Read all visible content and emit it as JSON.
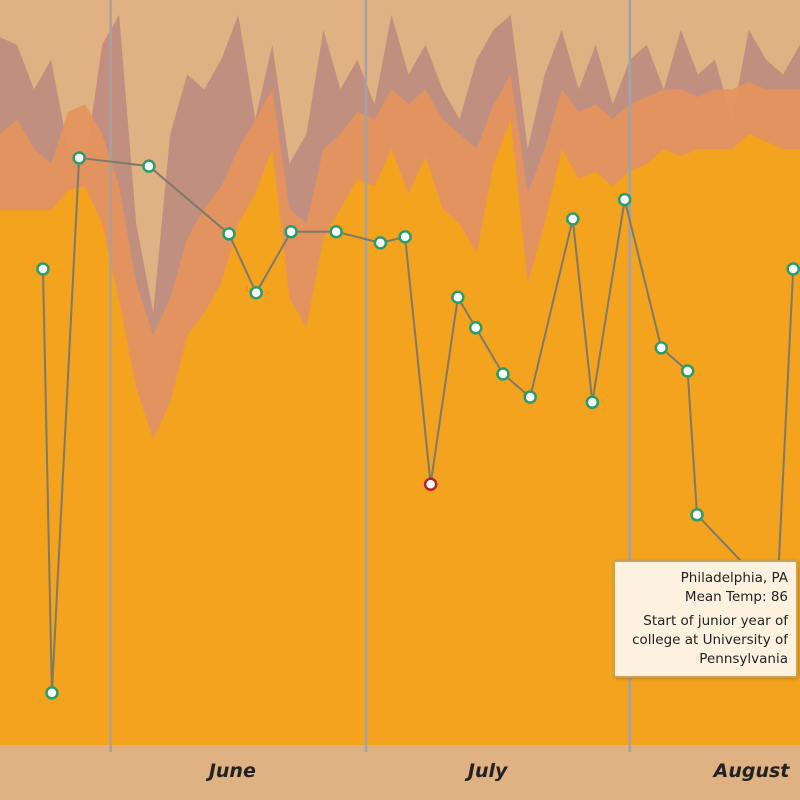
{
  "chart_data": {
    "type": "line",
    "xlim": [
      0,
      94
    ],
    "ylim": [
      0,
      100
    ],
    "xticks": [
      {
        "value": 13,
        "label": "June"
      },
      {
        "value": 43,
        "label": "July"
      },
      {
        "value": 74,
        "label": "August"
      }
    ],
    "background": "#dfb183",
    "areas": [
      {
        "color": "#bc8a80",
        "x": [
          0,
          2,
          4,
          6,
          8,
          10,
          12,
          14,
          16,
          18,
          20,
          22,
          24,
          26,
          28,
          30,
          32,
          34,
          36,
          38,
          40,
          42,
          44,
          46,
          48,
          50,
          52,
          54,
          56,
          58,
          60,
          62,
          64,
          66,
          68,
          70,
          72,
          74,
          76,
          78,
          80,
          82,
          84,
          86,
          88,
          90,
          92,
          94
        ],
        "values": [
          95,
          94,
          88,
          92,
          80,
          78,
          94,
          98,
          70,
          58,
          82,
          90,
          88,
          92,
          98,
          84,
          94,
          78,
          82,
          96,
          88,
          92,
          86,
          98,
          90,
          94,
          88,
          84,
          92,
          96,
          98,
          80,
          90,
          96,
          88,
          94,
          86,
          92,
          94,
          88,
          96,
          90,
          92,
          84,
          96,
          92,
          90,
          94
        ]
      },
      {
        "color": "#e6935c",
        "x": [
          0,
          2,
          4,
          6,
          8,
          10,
          12,
          14,
          16,
          18,
          20,
          22,
          24,
          26,
          28,
          30,
          32,
          34,
          36,
          38,
          40,
          42,
          44,
          46,
          48,
          50,
          52,
          54,
          56,
          58,
          60,
          62,
          64,
          66,
          68,
          70,
          72,
          74,
          76,
          78,
          80,
          82,
          84,
          86,
          88,
          90,
          92,
          94
        ],
        "values": [
          82,
          84,
          80,
          78,
          85,
          86,
          82,
          75,
          62,
          55,
          60,
          68,
          72,
          75,
          80,
          84,
          88,
          72,
          70,
          80,
          82,
          85,
          84,
          88,
          86,
          88,
          84,
          82,
          80,
          86,
          90,
          74,
          80,
          88,
          85,
          86,
          84,
          86,
          87,
          88,
          88,
          87,
          88,
          88,
          89,
          88,
          88,
          88
        ]
      },
      {
        "color": "#f5a516",
        "x": [
          0,
          2,
          4,
          6,
          8,
          10,
          12,
          14,
          16,
          18,
          20,
          22,
          24,
          26,
          28,
          30,
          32,
          34,
          36,
          38,
          40,
          42,
          44,
          46,
          48,
          50,
          52,
          54,
          56,
          58,
          60,
          62,
          64,
          66,
          68,
          70,
          72,
          74,
          76,
          78,
          80,
          82,
          84,
          86,
          88,
          90,
          92,
          94
        ],
        "values": [
          71.8,
          71.8,
          71.8,
          71.8,
          74.5,
          75,
          70,
          59.7,
          48,
          41,
          46,
          55,
          58,
          62,
          70,
          74,
          80,
          60,
          56,
          68,
          72,
          76,
          75,
          80,
          74,
          79,
          72,
          70,
          66,
          78,
          84,
          62,
          70,
          80,
          76,
          77,
          75,
          77,
          78,
          80,
          79,
          80,
          80,
          80,
          82,
          81,
          80,
          80
        ]
      }
    ],
    "line": {
      "color": "#7d7a68",
      "marker_color": "#2a9c6c",
      "highlight_color": "#b3242c",
      "highlight_point": 10,
      "x": [
        5.05,
        6.1,
        9.3,
        17.5,
        26.9,
        30.1,
        34.2,
        39.5,
        44.7,
        47.6,
        50.6,
        53.8,
        55.9,
        59.1,
        62.3,
        67.3,
        69.6,
        73.4,
        77.7,
        80.8,
        81.9,
        91.3,
        93.2
      ],
      "values": [
        63.9,
        7.0,
        78.8,
        77.7,
        68.6,
        60.7,
        68.9,
        68.9,
        67.4,
        68.2,
        35.0,
        60.1,
        56.0,
        49.8,
        46.7,
        70.6,
        46.0,
        73.2,
        53.3,
        50.2,
        30.9,
        19.6,
        63.9
      ]
    },
    "tooltip": {
      "lines": [
        "Philadelphia, PA",
        "Mean Temp: 86",
        "Start of junior year of college at University of Pennsylvania"
      ]
    }
  }
}
